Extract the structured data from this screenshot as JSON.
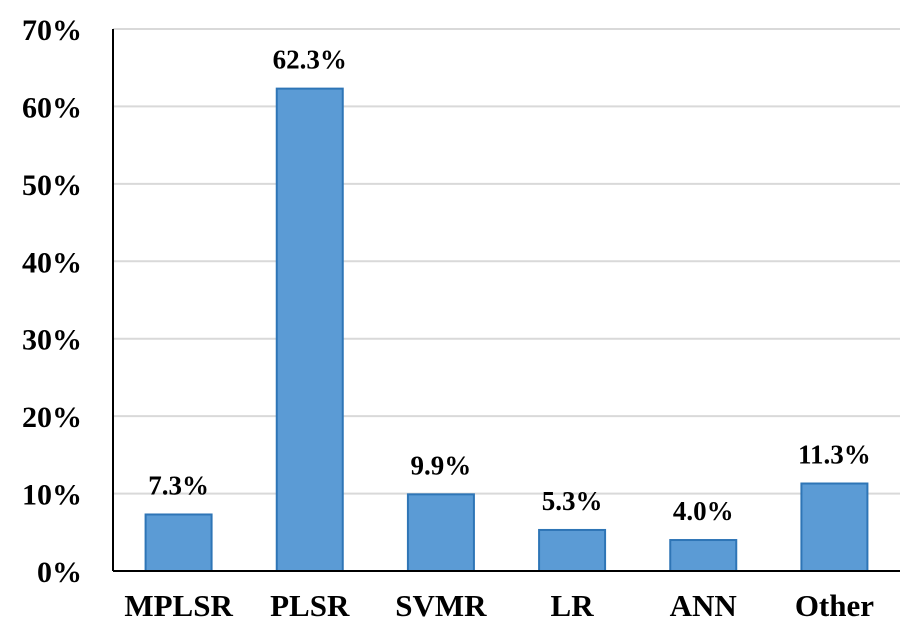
{
  "chart_data": {
    "type": "bar",
    "title": "",
    "xlabel": "",
    "ylabel": "",
    "categories": [
      "MPLSR",
      "PLSR",
      "SVMR",
      "LR",
      "ANN",
      "Other"
    ],
    "values": [
      7.3,
      62.3,
      9.9,
      5.3,
      4.0,
      11.3
    ],
    "data_labels": [
      "7.3%",
      "62.3%",
      "9.9%",
      "5.3%",
      "4.0%",
      "11.3%"
    ],
    "ylim": [
      0,
      70
    ],
    "yticks": [
      0,
      10,
      20,
      30,
      40,
      50,
      60,
      70
    ],
    "ytick_labels": [
      "0%",
      "10%",
      "20%",
      "30%",
      "40%",
      "50%",
      "60%",
      "70%"
    ],
    "grid": true,
    "colors": {
      "bar_fill": "#5b9bd5",
      "bar_stroke": "#2e75b6",
      "grid": "#d9d9d9",
      "axis": "#000000"
    }
  }
}
